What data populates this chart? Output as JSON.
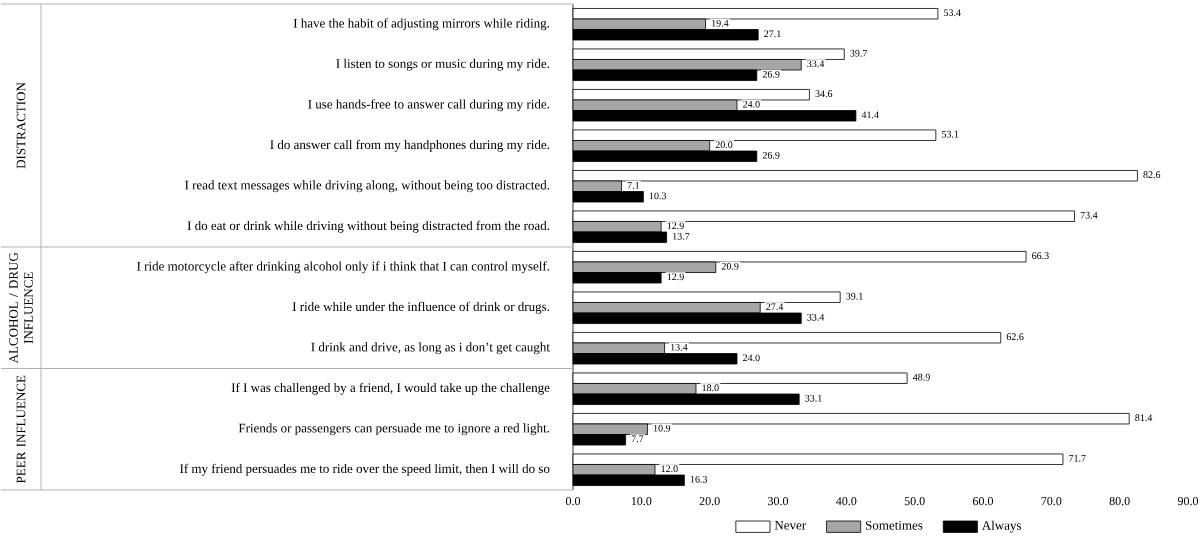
{
  "chart_data": {
    "type": "bar",
    "orientation": "horizontal",
    "legend": "bottom",
    "categories": [
      "I have the habit of adjusting mirrors while riding.",
      "I listen to songs or music during my ride.",
      "I use hands-free to answer call during my ride.",
      "I do answer call from my handphones during my ride.",
      "I read text messages while driving along, without being too distracted.",
      "I do eat or drink while driving without being distracted from the road.",
      "I ride motorcycle after drinking alcohol only if i think that I can control myself.",
      "I ride while under the influence of drink or drugs.",
      "I drink and drive, as long as i don’t get caught",
      "If I was challenged by a friend, I would take up the challenge",
      "Friends or passengers can persuade me to ignore a red light.",
      "If my friend persuades me to ride over the speed limit, then I will do so"
    ],
    "series": [
      {
        "name": "Never",
        "color": "#ffffff",
        "values": [
          53.4,
          39.7,
          34.6,
          53.1,
          82.6,
          73.4,
          66.3,
          39.1,
          62.6,
          48.9,
          81.4,
          71.7
        ],
        "value_labels": [
          "53.4",
          "39.7",
          "34.6",
          "53.1",
          "82.6",
          "73.4",
          "66.3",
          "39.1",
          "62.6",
          "48.9",
          "81.4",
          "71.7"
        ]
      },
      {
        "name": "Sometimes",
        "color": "#a6a6a6",
        "values": [
          19.4,
          33.4,
          24.0,
          20.0,
          7.1,
          12.9,
          20.9,
          27.4,
          13.4,
          18.0,
          10.9,
          12.0
        ],
        "value_labels": [
          "19.4",
          "33.4",
          "24.0",
          "20.0",
          "7.1",
          "12.9",
          "20.9",
          "27.4",
          "13.4",
          "18.0",
          "10.9",
          "12.0"
        ]
      },
      {
        "name": "Always",
        "color": "#000000",
        "values": [
          27.1,
          26.9,
          41.4,
          26.9,
          10.3,
          13.7,
          12.9,
          33.4,
          24.0,
          33.1,
          7.7,
          16.3
        ],
        "value_labels": [
          "27.1",
          "26.9",
          "41.4",
          "26.9",
          "10.3",
          "13.7",
          "12.9",
          "33.4",
          "24.0",
          "33.1",
          "7.7",
          "16.3"
        ]
      }
    ],
    "xlim": [
      0,
      90
    ],
    "xticks": [
      {
        "value": 0,
        "label": "0.0"
      },
      {
        "value": 10,
        "label": "10.0"
      },
      {
        "value": 20,
        "label": "20.0"
      },
      {
        "value": 30,
        "label": "30.0"
      },
      {
        "value": 40,
        "label": "40.0"
      },
      {
        "value": 50,
        "label": "50.0"
      },
      {
        "value": 60,
        "label": "60.0"
      },
      {
        "value": 70,
        "label": "70.0"
      },
      {
        "value": 80,
        "label": "80.0"
      },
      {
        "value": 90,
        "label": "90.0"
      }
    ],
    "annotations": [
      "DISTRACTION",
      "ALCOHOL / DRUG INFLUENCE",
      "PEER INFLUENCE"
    ]
  }
}
